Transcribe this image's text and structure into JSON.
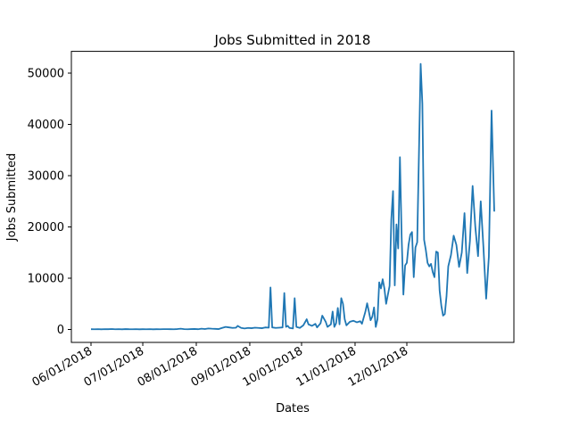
{
  "chart_data": {
    "type": "line",
    "title": "Jobs Submitted in 2018",
    "xlabel": "Dates",
    "ylabel": "Jobs Submitted",
    "xlim": [
      "2018-05-25",
      "2018-12-26"
    ],
    "ylim": [
      -2600,
      54300
    ],
    "grid": false,
    "color": "#1f77b4",
    "x_ticks": [
      {
        "date": "2018-06-01",
        "label": "06/01/2018"
      },
      {
        "date": "2018-07-01",
        "label": "07/01/2018"
      },
      {
        "date": "2018-08-01",
        "label": "08/01/2018"
      },
      {
        "date": "2018-09-01",
        "label": "09/01/2018"
      },
      {
        "date": "2018-10-01",
        "label": "10/01/2018"
      },
      {
        "date": "2018-11-01",
        "label": "11/01/2018"
      },
      {
        "date": "2018-12-01",
        "label": "12/01/2018"
      }
    ],
    "y_ticks": [
      0,
      10000,
      20000,
      30000,
      40000,
      50000
    ],
    "points": [
      [
        "2018-06-01",
        50
      ],
      [
        "2018-06-03",
        40
      ],
      [
        "2018-06-05",
        60
      ],
      [
        "2018-06-07",
        30
      ],
      [
        "2018-06-09",
        70
      ],
      [
        "2018-06-11",
        50
      ],
      [
        "2018-06-13",
        90
      ],
      [
        "2018-06-15",
        40
      ],
      [
        "2018-06-17",
        60
      ],
      [
        "2018-06-19",
        30
      ],
      [
        "2018-06-21",
        80
      ],
      [
        "2018-06-23",
        50
      ],
      [
        "2018-06-25",
        40
      ],
      [
        "2018-06-27",
        60
      ],
      [
        "2018-06-29",
        30
      ],
      [
        "2018-07-01",
        50
      ],
      [
        "2018-07-03",
        40
      ],
      [
        "2018-07-05",
        60
      ],
      [
        "2018-07-07",
        30
      ],
      [
        "2018-07-09",
        50
      ],
      [
        "2018-07-11",
        40
      ],
      [
        "2018-07-13",
        70
      ],
      [
        "2018-07-15",
        60
      ],
      [
        "2018-07-17",
        50
      ],
      [
        "2018-07-19",
        40
      ],
      [
        "2018-07-21",
        80
      ],
      [
        "2018-07-23",
        150
      ],
      [
        "2018-07-25",
        60
      ],
      [
        "2018-07-27",
        40
      ],
      [
        "2018-07-29",
        80
      ],
      [
        "2018-07-31",
        100
      ],
      [
        "2018-08-02",
        50
      ],
      [
        "2018-08-04",
        150
      ],
      [
        "2018-08-06",
        80
      ],
      [
        "2018-08-08",
        200
      ],
      [
        "2018-08-10",
        150
      ],
      [
        "2018-08-12",
        120
      ],
      [
        "2018-08-14",
        80
      ],
      [
        "2018-08-16",
        300
      ],
      [
        "2018-08-18",
        500
      ],
      [
        "2018-08-20",
        400
      ],
      [
        "2018-08-22",
        300
      ],
      [
        "2018-08-24",
        350
      ],
      [
        "2018-08-25",
        700
      ],
      [
        "2018-08-27",
        300
      ],
      [
        "2018-08-29",
        200
      ],
      [
        "2018-08-31",
        300
      ],
      [
        "2018-09-02",
        250
      ],
      [
        "2018-09-04",
        350
      ],
      [
        "2018-09-06",
        300
      ],
      [
        "2018-09-08",
        250
      ],
      [
        "2018-09-10",
        400
      ],
      [
        "2018-09-12",
        350
      ],
      [
        "2018-09-13",
        8200
      ],
      [
        "2018-09-14",
        400
      ],
      [
        "2018-09-16",
        300
      ],
      [
        "2018-09-18",
        350
      ],
      [
        "2018-09-20",
        400
      ],
      [
        "2018-09-21",
        7100
      ],
      [
        "2018-09-22",
        500
      ],
      [
        "2018-09-23",
        700
      ],
      [
        "2018-09-24",
        300
      ],
      [
        "2018-09-26",
        200
      ],
      [
        "2018-09-27",
        6100
      ],
      [
        "2018-09-28",
        500
      ],
      [
        "2018-09-30",
        300
      ],
      [
        "2018-10-02",
        800
      ],
      [
        "2018-10-04",
        2000
      ],
      [
        "2018-10-05",
        1000
      ],
      [
        "2018-10-07",
        700
      ],
      [
        "2018-10-09",
        1100
      ],
      [
        "2018-10-10",
        400
      ],
      [
        "2018-10-12",
        1200
      ],
      [
        "2018-10-13",
        2700
      ],
      [
        "2018-10-15",
        1500
      ],
      [
        "2018-10-16",
        500
      ],
      [
        "2018-10-18",
        1000
      ],
      [
        "2018-10-19",
        3500
      ],
      [
        "2018-10-20",
        500
      ],
      [
        "2018-10-21",
        1200
      ],
      [
        "2018-10-22",
        4200
      ],
      [
        "2018-10-23",
        1000
      ],
      [
        "2018-10-24",
        6100
      ],
      [
        "2018-10-25",
        5000
      ],
      [
        "2018-10-26",
        2000
      ],
      [
        "2018-10-27",
        800
      ],
      [
        "2018-10-29",
        1500
      ],
      [
        "2018-10-31",
        1700
      ],
      [
        "2018-11-02",
        1400
      ],
      [
        "2018-11-04",
        1600
      ],
      [
        "2018-11-05",
        1100
      ],
      [
        "2018-11-07",
        3500
      ],
      [
        "2018-11-08",
        5100
      ],
      [
        "2018-11-09",
        3500
      ],
      [
        "2018-11-10",
        1800
      ],
      [
        "2018-11-11",
        2500
      ],
      [
        "2018-11-12",
        4300
      ],
      [
        "2018-11-13",
        500
      ],
      [
        "2018-11-14",
        2000
      ],
      [
        "2018-11-15",
        9200
      ],
      [
        "2018-11-16",
        8000
      ],
      [
        "2018-11-17",
        9800
      ],
      [
        "2018-11-18",
        8000
      ],
      [
        "2018-11-19",
        5000
      ],
      [
        "2018-11-21",
        8500
      ],
      [
        "2018-11-22",
        21500
      ],
      [
        "2018-11-23",
        27000
      ],
      [
        "2018-11-24",
        8600
      ],
      [
        "2018-11-25",
        20500
      ],
      [
        "2018-11-26",
        15800
      ],
      [
        "2018-11-27",
        33600
      ],
      [
        "2018-11-28",
        18000
      ],
      [
        "2018-11-29",
        6800
      ],
      [
        "2018-11-30",
        12500
      ],
      [
        "2018-12-01",
        13000
      ],
      [
        "2018-12-02",
        16500
      ],
      [
        "2018-12-03",
        18500
      ],
      [
        "2018-12-04",
        19000
      ],
      [
        "2018-12-05",
        10200
      ],
      [
        "2018-12-06",
        16000
      ],
      [
        "2018-12-07",
        17000
      ],
      [
        "2018-12-08",
        34000
      ],
      [
        "2018-12-09",
        51800
      ],
      [
        "2018-12-10",
        44000
      ],
      [
        "2018-12-11",
        17500
      ],
      [
        "2018-12-12",
        15500
      ],
      [
        "2018-12-13",
        13000
      ],
      [
        "2018-12-14",
        12300
      ],
      [
        "2018-12-15",
        12800
      ],
      [
        "2018-12-16",
        11200
      ],
      [
        "2018-12-17",
        10200
      ],
      [
        "2018-12-18",
        15200
      ],
      [
        "2018-12-19",
        15000
      ],
      [
        "2018-12-20",
        7600
      ],
      [
        "2018-12-21",
        4600
      ],
      [
        "2018-12-22",
        2700
      ],
      [
        "2018-12-23",
        3000
      ],
      [
        "2018-12-24",
        6500
      ],
      [
        "2018-12-25",
        12300
      ]
    ],
    "points_late": [
      [
        "2018-12-26",
        14500
      ],
      [
        "2018-12-27",
        18300
      ],
      [
        "2018-12-28",
        16500
      ],
      [
        "2018-12-29",
        12200
      ],
      [
        "2018-12-30",
        15000
      ],
      [
        "2018-12-31",
        22700
      ],
      [
        "2019-01-01",
        11000
      ],
      [
        "2019-01-02",
        17200
      ],
      [
        "2019-01-03",
        28000
      ],
      [
        "2019-01-04",
        20000
      ],
      [
        "2019-01-05",
        14300
      ],
      [
        "2019-01-06",
        25000
      ],
      [
        "2019-01-07",
        16000
      ],
      [
        "2019-01-08",
        6000
      ],
      [
        "2019-01-09",
        14200
      ],
      [
        "2019-01-10",
        42700
      ],
      [
        "2019-01-11",
        23000
      ]
    ]
  }
}
